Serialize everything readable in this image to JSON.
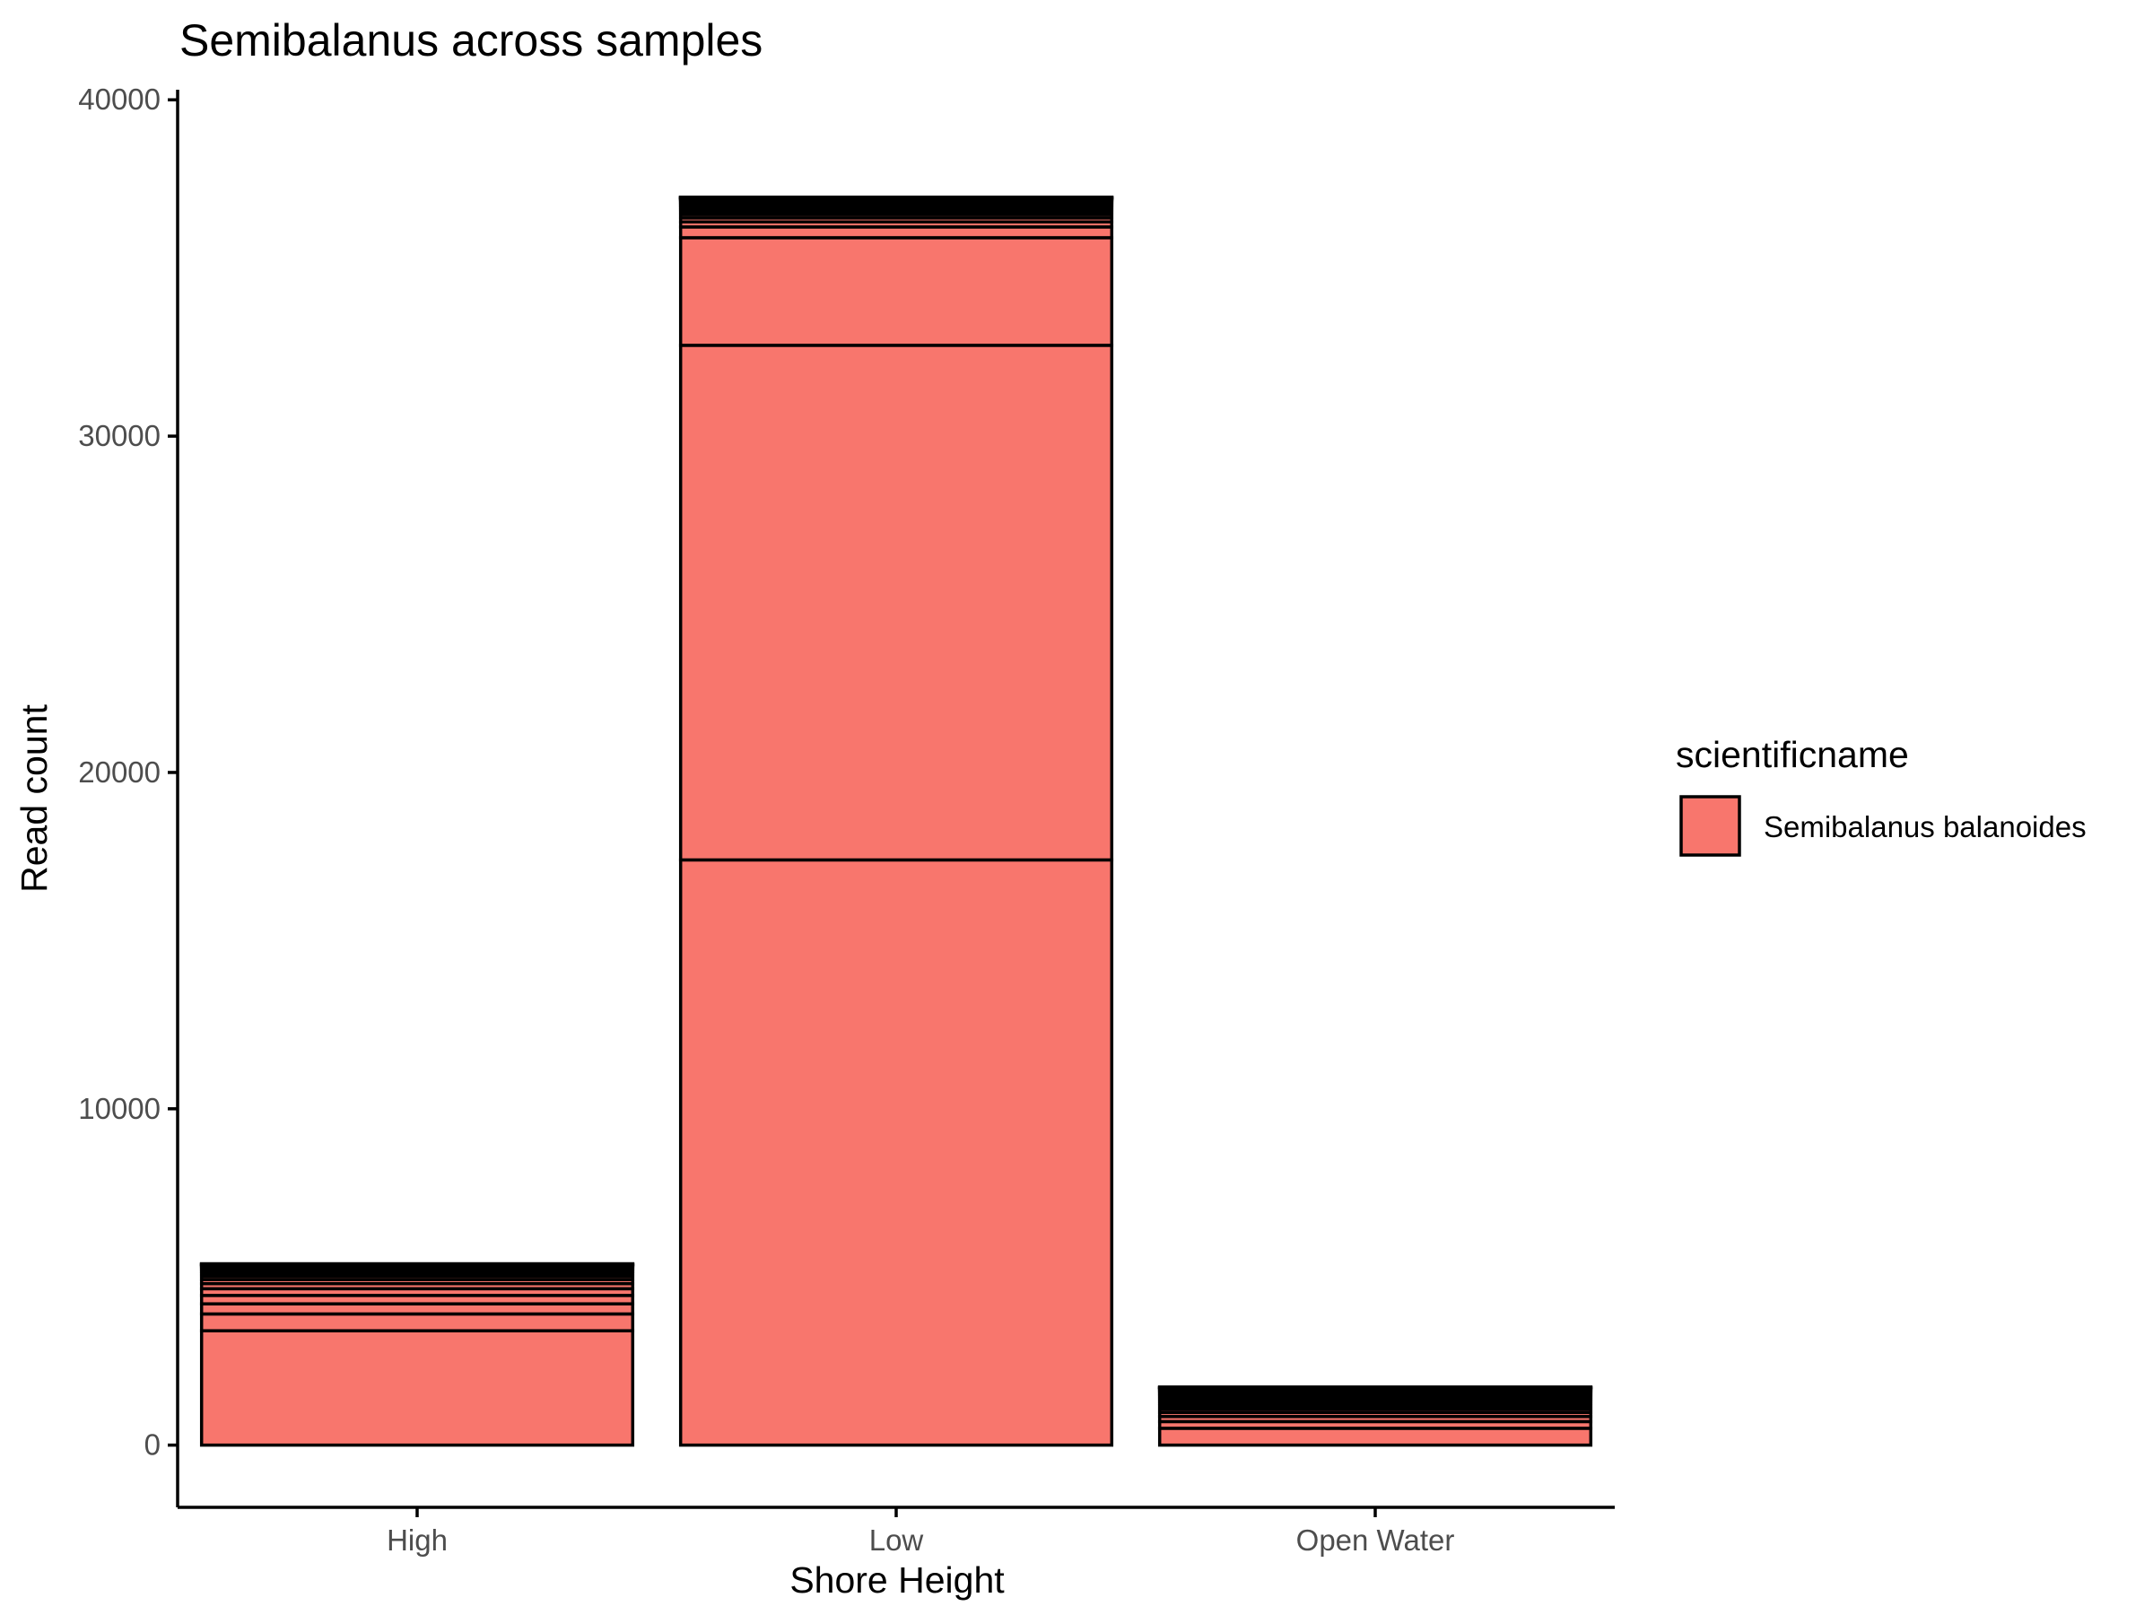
{
  "chart_data": {
    "type": "bar",
    "stacked": true,
    "title": "Semibalanus across samples",
    "xlabel": "Shore Height",
    "ylabel": "Read count",
    "categories": [
      "High",
      "Low",
      "Open Water"
    ],
    "ylim": [
      -1850,
      40300
    ],
    "yticks": [
      0,
      10000,
      20000,
      30000,
      40000
    ],
    "ytick_labels": [
      "0",
      "10000",
      "20000",
      "30000",
      "40000"
    ],
    "grid": false,
    "legend": {
      "title": "scientificname",
      "placement": "right",
      "entries": [
        {
          "label": "Semibalanus balanoides",
          "color": "#F8766D"
        }
      ]
    },
    "segment_color": "#F8766D",
    "segment_border_color": "#000000",
    "stacks": [
      {
        "category": "High",
        "segments": [
          3400,
          500,
          300,
          250,
          200,
          150,
          120,
          100,
          80,
          60,
          50,
          40,
          30,
          25,
          20,
          15,
          10,
          10,
          8,
          6,
          5,
          5,
          3,
          2,
          1
        ]
      },
      {
        "category": "Low",
        "segments": [
          17400,
          15300,
          3200,
          320,
          150,
          120,
          100,
          80,
          60,
          50,
          40,
          35,
          30,
          28,
          25,
          22,
          20,
          18,
          15,
          12,
          10,
          10,
          8,
          7,
          6,
          5,
          5,
          4,
          4,
          3,
          3,
          3,
          2,
          2,
          2,
          1,
          1,
          1,
          1,
          1,
          1
        ]
      },
      {
        "category": "Open Water",
        "segments": [
          500,
          200,
          150,
          120,
          100,
          90,
          80,
          70,
          60,
          50,
          45,
          40,
          35,
          30,
          25,
          22,
          20,
          18,
          15,
          12,
          10,
          8,
          6,
          5,
          4,
          3,
          2,
          1,
          1,
          1
        ]
      }
    ]
  }
}
